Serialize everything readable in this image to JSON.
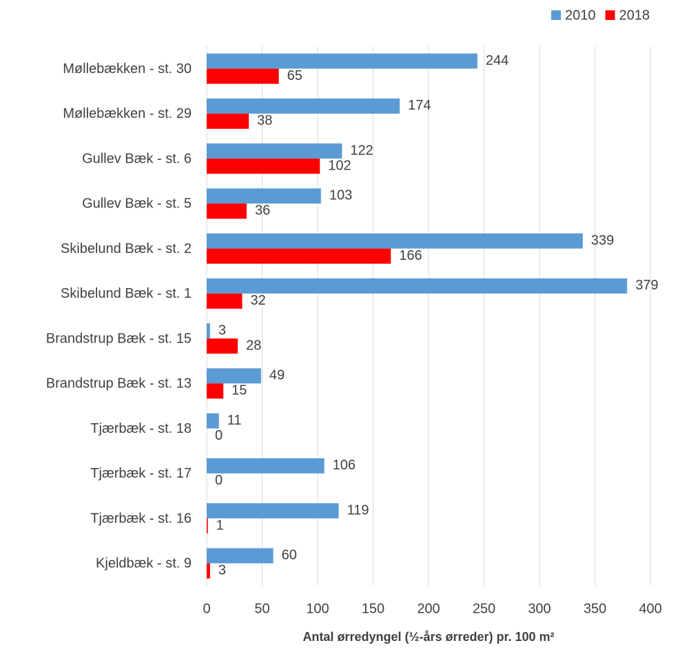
{
  "chart_data": {
    "type": "bar",
    "orientation": "horizontal",
    "x_label": "Antal ørredyngel (½-års ørreder) pr. 100 m²",
    "categories": [
      "Møllebækken - st. 30",
      "Møllebækken - st. 29",
      "Gullev Bæk - st. 6",
      "Gullev Bæk - st. 5",
      "Skibelund Bæk - st. 2",
      "Skibelund Bæk - st. 1",
      "Brandstrup Bæk - st. 15",
      "Brandstrup Bæk - st. 13",
      "Tjærbæk - st. 18",
      "Tjærbæk - st. 17",
      "Tjærbæk - st. 16",
      "Kjeldbæk - st. 9"
    ],
    "series": [
      {
        "name": "2010",
        "color": "#5b9bd5",
        "values": [
          244,
          174,
          122,
          103,
          339,
          379,
          3,
          49,
          11,
          106,
          119,
          60
        ]
      },
      {
        "name": "2018",
        "color": "#ff0000",
        "values": [
          65,
          38,
          102,
          36,
          166,
          32,
          28,
          15,
          0,
          0,
          1,
          3
        ]
      }
    ],
    "xlim": [
      0,
      400
    ],
    "xticks": [
      0,
      50,
      100,
      150,
      200,
      250,
      300,
      350,
      400
    ],
    "grid": true,
    "legend": "top-right",
    "data_labels": true
  }
}
